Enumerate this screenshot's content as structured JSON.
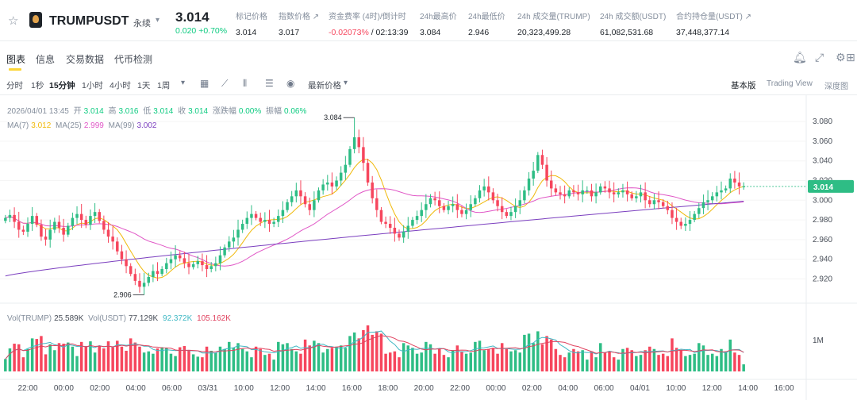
{
  "ticker": {
    "symbol": "TRUMPUSDT",
    "contract_type": "永续",
    "last_price": "3.014",
    "change": "0.020 +0.70%",
    "stats": [
      {
        "label": "标记价格",
        "value": "3.014"
      },
      {
        "label": "指数价格 ↗",
        "value": "3.017"
      },
      {
        "label": "资金费率 (4时)/倒计时",
        "value": "-0.02073%",
        "value_sub": " / 02:13:39"
      },
      {
        "label": "24h最高价",
        "value": "3.084"
      },
      {
        "label": "24h最低价",
        "value": "2.946"
      },
      {
        "label": "24h 成交量(TRUMP)",
        "value": "20,323,499.28"
      },
      {
        "label": "24h 成交额(USDT)",
        "value": "61,082,531.68"
      },
      {
        "label": "合约持仓量(USDT) ↗",
        "value": "37,448,377.14"
      }
    ]
  },
  "tabs": [
    "图表",
    "信息",
    "交易数据",
    "代币检测"
  ],
  "toolbar": {
    "timeframes": [
      "分时",
      "1秒",
      "15分钟",
      "1小时",
      "4小时",
      "1天",
      "1周"
    ],
    "price_type": "最新价格",
    "views": [
      "基本版",
      "Trading View",
      "深度图"
    ]
  },
  "legend": {
    "ohlc": {
      "date": "2026/04/01 13:45",
      "open_label": "开",
      "open": "3.014",
      "high_label": "高",
      "high": "3.016",
      "low_label": "低",
      "low": "3.014",
      "close_label": "收",
      "close": "3.014",
      "chg_label": "涨跌幅",
      "chg": "0.00%",
      "amp_label": "振幅",
      "amp": "0.06%"
    },
    "ma": {
      "ma7_label": "MA(7)",
      "ma7": "3.012",
      "ma25_label": "MA(25)",
      "ma25": "2.999",
      "ma99_label": "MA(99)",
      "ma99": "3.002"
    },
    "vol": {
      "vol_trump_label": "Vol(TRUMP)",
      "vol_trump": "25.589K",
      "vol_usdt_label": "Vol(USDT)",
      "vol_usdt": "77.129K",
      "vol_ma1": "92.372K",
      "vol_ma2": "105.162K"
    }
  },
  "chart_data": {
    "type": "candlestick",
    "y_ticks": [
      "3.080",
      "3.060",
      "3.040",
      "3.020",
      "3.000",
      "2.980",
      "2.960",
      "2.940",
      "2.920"
    ],
    "ylim": [
      2.905,
      3.089
    ],
    "x_ticks": [
      "22:00",
      "00:00",
      "02:00",
      "04:00",
      "06:00",
      "03/31",
      "10:00",
      "12:00",
      "14:00",
      "16:00",
      "18:00",
      "20:00",
      "22:00",
      "00:00",
      "02:00",
      "04:00",
      "06:00",
      "04/01",
      "10:00",
      "12:00",
      "14:00",
      "16:00"
    ],
    "annotations": {
      "high": "3.084",
      "low": "2.906"
    },
    "current_price_label": "3.014",
    "vol_axis_label": "1M",
    "close": [
      2.982,
      2.985,
      2.978,
      2.97,
      2.968,
      2.976,
      2.984,
      2.975,
      2.963,
      2.96,
      2.97,
      2.978,
      2.972,
      2.965,
      2.974,
      2.982,
      2.986,
      2.98,
      2.975,
      2.984,
      2.988,
      2.979,
      2.97,
      2.963,
      2.958,
      2.948,
      2.94,
      2.933,
      2.925,
      2.918,
      2.912,
      2.916,
      2.922,
      2.928,
      2.925,
      2.93,
      2.936,
      2.94,
      2.944,
      2.941,
      2.936,
      2.932,
      2.935,
      2.938,
      2.934,
      2.93,
      2.933,
      2.936,
      2.944,
      2.952,
      2.958,
      2.962,
      2.97,
      2.976,
      2.982,
      2.986,
      2.982,
      2.978,
      2.98,
      2.976,
      2.978,
      2.984,
      2.99,
      2.998,
      3.004,
      3.01,
      3.004,
      2.996,
      2.99,
      3.0,
      3.01,
      3.016,
      3.018,
      3.014,
      3.02,
      3.028,
      3.036,
      3.052,
      3.064,
      3.054,
      3.038,
      3.018,
      3.002,
      2.99,
      2.978,
      2.976,
      2.972,
      2.966,
      2.962,
      2.968,
      2.974,
      2.98,
      2.984,
      2.99,
      2.996,
      3.002,
      3.0,
      2.994,
      2.99,
      2.994,
      2.996,
      2.99,
      2.986,
      2.99,
      2.996,
      3.002,
      3.01,
      3.014,
      3.008,
      3.0,
      2.994,
      2.988,
      2.984,
      2.988,
      2.994,
      3.0,
      3.01,
      3.022,
      3.03,
      3.046,
      3.036,
      3.02,
      3.012,
      3.008,
      3.006,
      3.004,
      3.01,
      3.008,
      3.006,
      3.01,
      3.01,
      3.004,
      3.008,
      3.014,
      3.012,
      3.008,
      3.006,
      3.008,
      3.01,
      3.006,
      3.002,
      3.004,
      3.008,
      3.0,
      2.996,
      3.0,
      2.998,
      2.994,
      2.99,
      2.982,
      2.978,
      2.974,
      2.976,
      2.98,
      2.986,
      2.992,
      2.998,
      3.0,
      3.004,
      3.008,
      3.01,
      3.012,
      3.022,
      3.018,
      3.014,
      3.014
    ]
  }
}
